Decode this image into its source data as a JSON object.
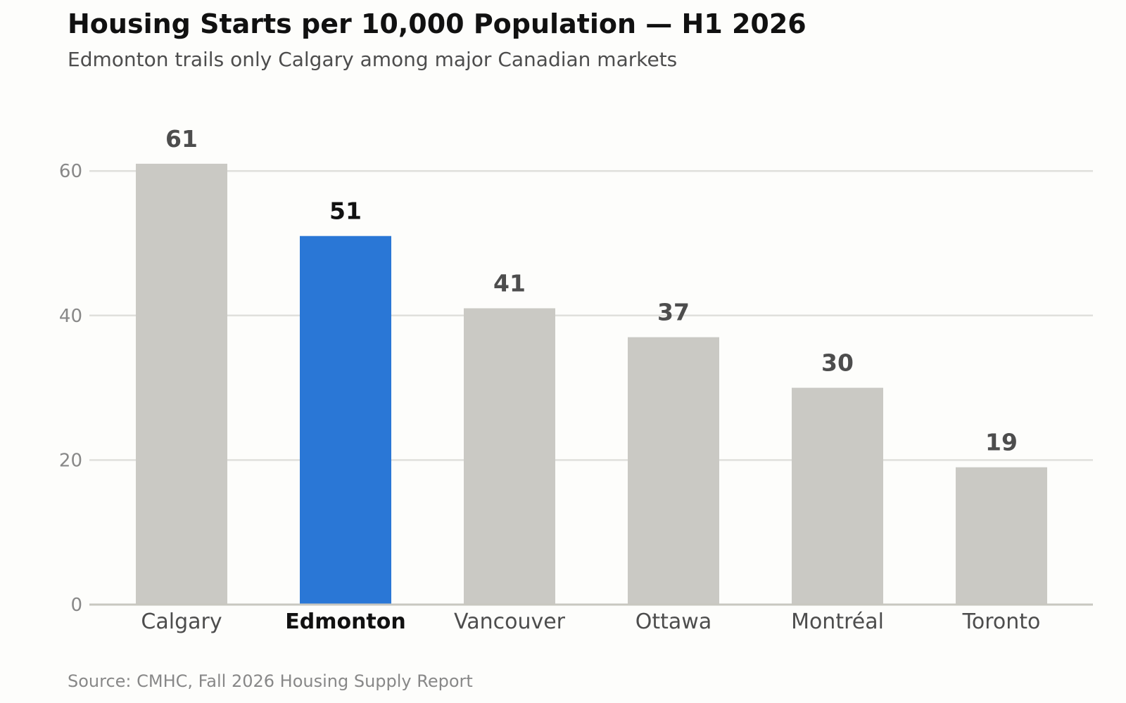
{
  "header": {
    "title": "Housing Starts per 10,000 Population — H1 2026",
    "subtitle": "Edmonton trails only Calgary among major Canadian markets"
  },
  "footer": {
    "source": "Source: CMHC, Fall 2026 Housing Supply Report"
  },
  "colors": {
    "highlight": "#2a77d6",
    "default_bar": "#cac9c4",
    "grid": "#e0e0dc",
    "axis": "#c8c7c0",
    "tick_label": "#888888",
    "category_label": "#4d4d4d",
    "value_label": "#4d4d4d",
    "highlight_label": "#111111"
  },
  "chart_data": {
    "type": "bar",
    "categories": [
      "Calgary",
      "Edmonton",
      "Vancouver",
      "Ottawa",
      "Montréal",
      "Toronto"
    ],
    "values": [
      61,
      51,
      41,
      37,
      30,
      19
    ],
    "highlight": "Edmonton",
    "title": "Housing Starts per 10,000 Population — H1 2026",
    "subtitle": "Edmonton trails only Calgary among major Canadian markets",
    "xlabel": "",
    "ylabel": "",
    "ylim": [
      0,
      70
    ],
    "yticks": [
      0,
      20,
      40,
      60
    ],
    "grid": true,
    "legend": "none",
    "data_labels": true
  }
}
